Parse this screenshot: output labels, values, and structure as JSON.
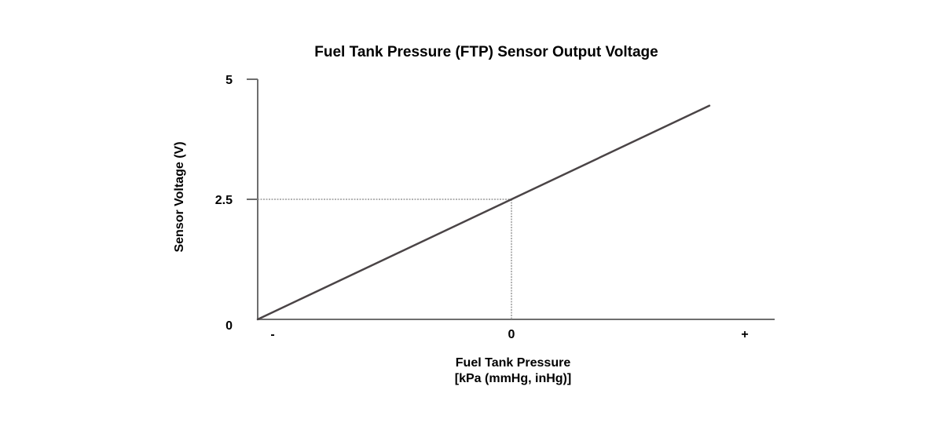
{
  "chart_data": {
    "type": "line",
    "title": "Fuel Tank Pressure (FTP) Sensor Output Voltage",
    "xlabel_lines": [
      "Fuel Tank Pressure",
      "[kPa (mmHg, inHg)]"
    ],
    "ylabel": "Sensor Voltage (V)",
    "x_tick_labels": [
      "-",
      "0",
      "+"
    ],
    "y_ticks": [
      {
        "value": 0,
        "label": "0"
      },
      {
        "value": 2.5,
        "label": "2.5"
      },
      {
        "value": 5,
        "label": "5"
      }
    ],
    "ylim": [
      0,
      5
    ],
    "xlim": [
      -1,
      1
    ],
    "series": [
      {
        "x": [
          -1,
          0,
          0.78
        ],
        "y": [
          0,
          2.5,
          4.45
        ]
      }
    ],
    "reference_point": {
      "x": 0,
      "y": 2.5
    },
    "grid": false,
    "colors": {
      "line": "#4a4446",
      "axis": "#6e6e6e",
      "reference": "#9a9a9a"
    }
  }
}
